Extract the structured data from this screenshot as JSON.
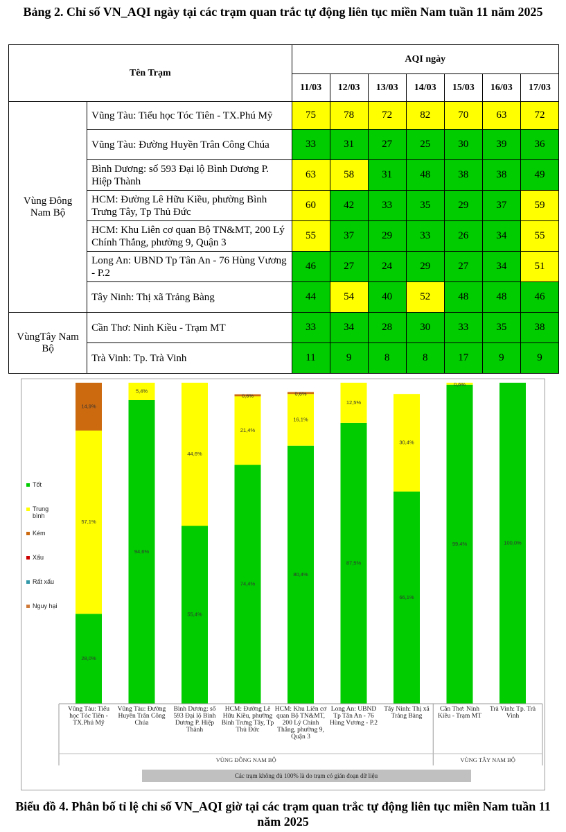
{
  "title": "Bảng 2. Chỉ số VN_AQI ngày tại các trạm quan trắc tự động liên tục miền Nam tuần 11 năm 2025",
  "table": {
    "header_station": "Tên Trạm",
    "header_aqi": "AQI ngày",
    "dates": [
      "11/03",
      "12/03",
      "13/03",
      "14/03",
      "15/03",
      "16/03",
      "17/03"
    ],
    "groups": [
      {
        "name": "Vùng Đông Nam Bộ",
        "rows": [
          {
            "station": "Vũng Tàu: Tiểu học Tóc Tiên - TX.Phú Mỹ",
            "values": [
              75,
              78,
              72,
              82,
              70,
              63,
              72
            ]
          },
          {
            "station": "Vũng Tàu: Đường Huyền Trân Công Chúa",
            "values": [
              33,
              31,
              27,
              25,
              30,
              39,
              36
            ]
          },
          {
            "station": "Bình Dương: số 593 Đại lộ Bình Dương P. Hiệp Thành",
            "values": [
              63,
              58,
              31,
              48,
              38,
              38,
              49
            ]
          },
          {
            "station": "HCM: Đường Lê Hữu Kiều, phường Bình Trưng Tây, Tp Thủ Đức",
            "values": [
              60,
              42,
              33,
              35,
              29,
              37,
              59
            ]
          },
          {
            "station": "HCM: Khu Liên cơ quan Bộ TN&MT, 200 Lý Chính Thắng, phường 9, Quận 3",
            "values": [
              55,
              37,
              29,
              33,
              26,
              34,
              55
            ]
          },
          {
            "station": "Long An: UBND Tp Tân An - 76 Hùng Vương - P.2",
            "values": [
              46,
              27,
              24,
              29,
              27,
              34,
              51
            ]
          },
          {
            "station": "Tây Ninh: Thị xã Trảng Bàng",
            "values": [
              44,
              54,
              40,
              52,
              48,
              48,
              46
            ]
          }
        ]
      },
      {
        "name": "VùngTây Nam Bộ",
        "rows": [
          {
            "station": "Cần Thơ: Ninh Kiều - Trạm MT",
            "values": [
              33,
              34,
              28,
              30,
              33,
              35,
              38
            ]
          },
          {
            "station": "Trà Vinh: Tp. Trà Vinh",
            "values": [
              11,
              9,
              8,
              8,
              17,
              9,
              9
            ]
          }
        ]
      }
    ]
  },
  "chart_data": {
    "type": "stacked_bar",
    "categories": [
      "Vũng Tàu: Tiểu học Tóc Tiên - TX.Phú Mỹ",
      "Vũng Tàu: Đường Huyền Trân Công Chúa",
      "Bình Dương: số 593 Đại lộ Bình Dương P. Hiệp Thành",
      "HCM: Đường Lê Hữu Kiều, phường Bình Trưng Tây, Tp Thủ Đức",
      "HCM: Khu Liên cơ quan Bộ TN&MT, 200 Lý Chính Thắng, phường 9, Quận 3",
      "Long An: UBND Tp Tân An - 76 Hùng Vương - P.2",
      "Tây Ninh: Thị xã Trảng Bàng",
      "Cần Thơ: Ninh Kiều - Trạm MT",
      "Trà Vinh: Tp. Trà Vinh"
    ],
    "series": [
      {
        "name": "Tốt",
        "color": "#00cc00",
        "values": [
          28.0,
          94.6,
          55.4,
          74.4,
          80.4,
          87.5,
          66.1,
          99.4,
          100.0
        ],
        "value_labels": [
          "28,0%",
          "94,6%",
          "55,4%",
          "74,4%",
          "80,4%",
          "87,5%",
          "66,1%",
          "99,4%",
          "100,0%"
        ]
      },
      {
        "name": "Trung bình",
        "color": "#ffff00",
        "values": [
          57.1,
          5.4,
          44.6,
          21.4,
          16.1,
          12.5,
          30.4,
          0.6,
          0
        ],
        "value_labels": [
          "57,1%",
          "5,4%",
          "44,6%",
          "21,4%",
          "16,1%",
          "12,5%",
          "30,4%",
          "0,6%",
          null
        ]
      },
      {
        "name": "Kém",
        "color": "#cc6a10",
        "values": [
          14.9,
          0,
          0,
          0.6,
          0.6,
          0,
          0,
          0,
          0
        ],
        "value_labels": [
          "14,9%",
          null,
          null,
          "0,6%",
          "0,6%",
          null,
          null,
          null,
          null
        ]
      },
      {
        "name": "Xấu",
        "color": "#cc0000",
        "values": [
          0,
          0,
          0,
          0,
          0,
          0,
          0,
          0,
          0
        ]
      },
      {
        "name": "Rất xấu",
        "color": "#3399aa",
        "values": [
          0,
          0,
          0,
          0,
          0,
          0,
          0,
          0,
          0
        ]
      },
      {
        "name": "Nguy hại",
        "color": "#d07a3a",
        "values": [
          0,
          0,
          0,
          0,
          0,
          0,
          0,
          0,
          0
        ]
      }
    ],
    "ylim": [
      0,
      100
    ],
    "regions": [
      "VÙNG ĐÔNG NAM BỘ",
      "VÙNG TÂY NAM BỘ"
    ],
    "note": "Các trạm không đủ 100% là do trạm có gián đoạn dữ liệu"
  },
  "caption": "Biểu đồ 4. Phân bố tỉ lệ chỉ số VN_AQI giờ tại các trạm quan trắc tự động liên tục miền Nam tuần 11 năm 2025"
}
